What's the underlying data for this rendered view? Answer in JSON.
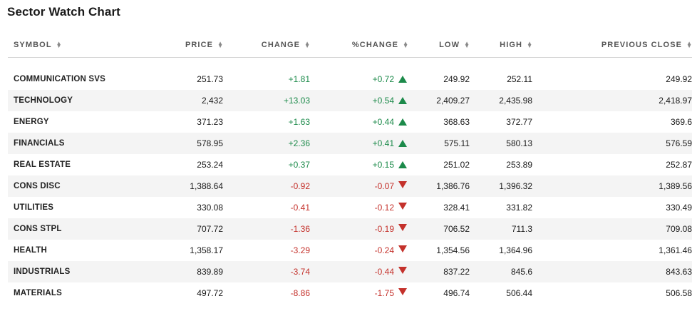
{
  "title": "Sector Watch Chart",
  "columns": {
    "symbol": "SYMBOL",
    "price": "PRICE",
    "change": "CHANGE",
    "pct_change": "%CHANGE",
    "low": "LOW",
    "high": "HIGH",
    "prev_close": "PREVIOUS CLOSE"
  },
  "colors": {
    "positive": "#1c8a4a",
    "negative": "#c4312b",
    "stripe": "#f4f4f4"
  },
  "icons": {
    "sort": "sort-arrows-icon",
    "up": "triangle-up-icon",
    "down": "triangle-down-icon"
  },
  "rows": [
    {
      "symbol": "COMMUNICATION SVS",
      "price": "251.73",
      "change": "+1.81",
      "pct": "+0.72",
      "dir": "up",
      "low": "249.92",
      "high": "252.11",
      "prev": "249.92"
    },
    {
      "symbol": "TECHNOLOGY",
      "price": "2,432",
      "change": "+13.03",
      "pct": "+0.54",
      "dir": "up",
      "low": "2,409.27",
      "high": "2,435.98",
      "prev": "2,418.97"
    },
    {
      "symbol": "ENERGY",
      "price": "371.23",
      "change": "+1.63",
      "pct": "+0.44",
      "dir": "up",
      "low": "368.63",
      "high": "372.77",
      "prev": "369.6"
    },
    {
      "symbol": "FINANCIALS",
      "price": "578.95",
      "change": "+2.36",
      "pct": "+0.41",
      "dir": "up",
      "low": "575.11",
      "high": "580.13",
      "prev": "576.59"
    },
    {
      "symbol": "REAL ESTATE",
      "price": "253.24",
      "change": "+0.37",
      "pct": "+0.15",
      "dir": "up",
      "low": "251.02",
      "high": "253.89",
      "prev": "252.87"
    },
    {
      "symbol": "CONS DISC",
      "price": "1,388.64",
      "change": "-0.92",
      "pct": "-0.07",
      "dir": "down",
      "low": "1,386.76",
      "high": "1,396.32",
      "prev": "1,389.56"
    },
    {
      "symbol": "UTILITIES",
      "price": "330.08",
      "change": "-0.41",
      "pct": "-0.12",
      "dir": "down",
      "low": "328.41",
      "high": "331.82",
      "prev": "330.49"
    },
    {
      "symbol": "CONS STPL",
      "price": "707.72",
      "change": "-1.36",
      "pct": "-0.19",
      "dir": "down",
      "low": "706.52",
      "high": "711.3",
      "prev": "709.08"
    },
    {
      "symbol": "HEALTH",
      "price": "1,358.17",
      "change": "-3.29",
      "pct": "-0.24",
      "dir": "down",
      "low": "1,354.56",
      "high": "1,364.96",
      "prev": "1,361.46"
    },
    {
      "symbol": "INDUSTRIALS",
      "price": "839.89",
      "change": "-3.74",
      "pct": "-0.44",
      "dir": "down",
      "low": "837.22",
      "high": "845.6",
      "prev": "843.63"
    },
    {
      "symbol": "MATERIALS",
      "price": "497.72",
      "change": "-8.86",
      "pct": "-1.75",
      "dir": "down",
      "low": "496.74",
      "high": "506.44",
      "prev": "506.58"
    }
  ]
}
